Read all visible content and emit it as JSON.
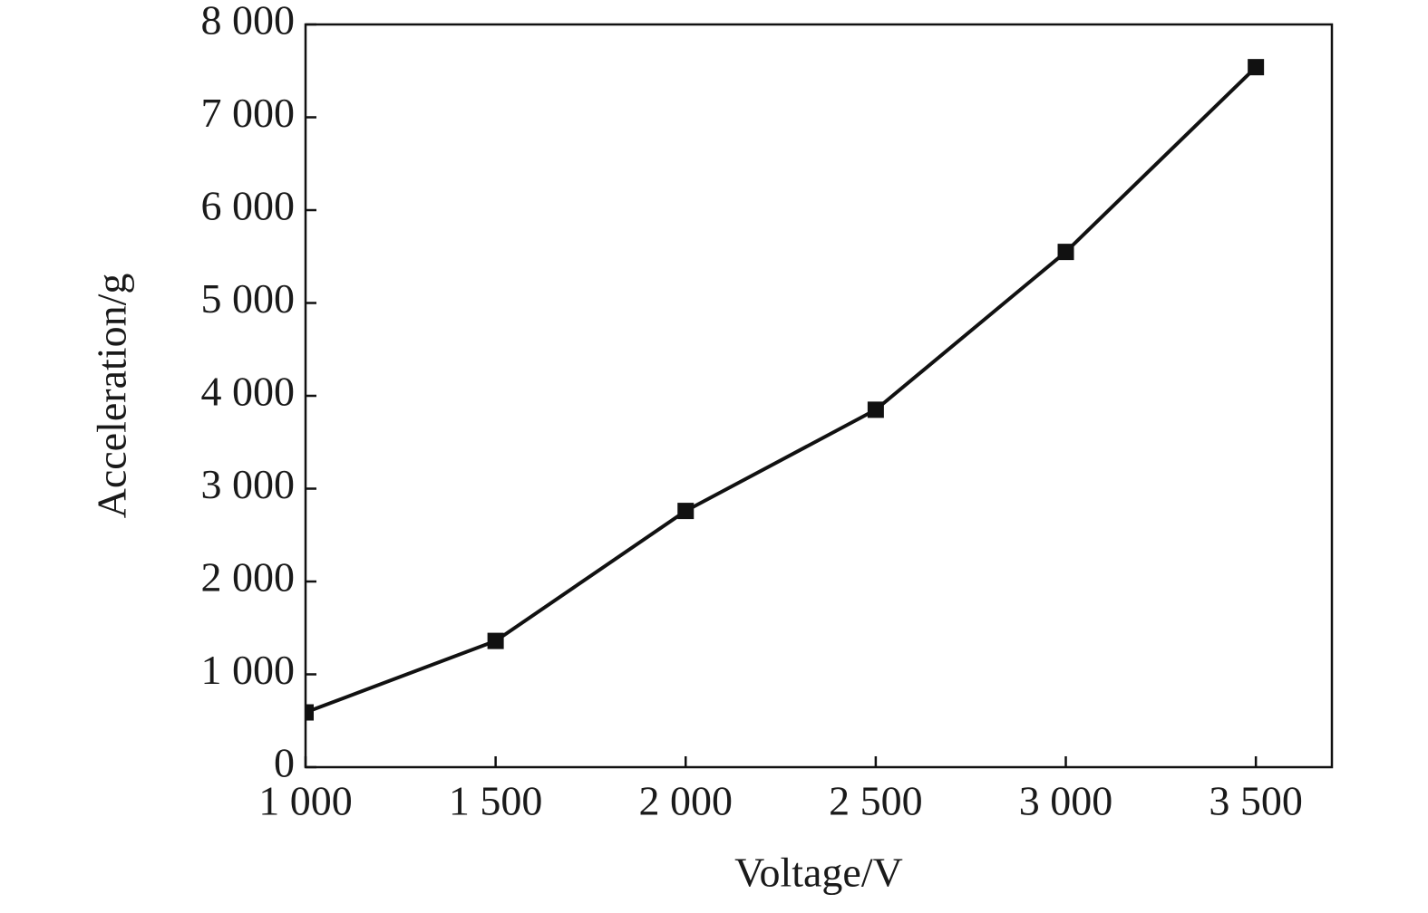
{
  "chart_data": {
    "type": "line",
    "x_label": "Voltage/V",
    "y_label": "Acceleration/g",
    "x": [
      1000,
      1500,
      2000,
      2500,
      3000,
      3500
    ],
    "series": [
      {
        "color": "#111111",
        "values": [
          590,
          1360,
          2760,
          3850,
          5550,
          7540
        ]
      }
    ],
    "xlim": [
      1000,
      3700
    ],
    "ylim": [
      0,
      8000
    ],
    "xticks": [
      {
        "value": 1000,
        "label": "1 000"
      },
      {
        "value": 1500,
        "label": "1 500"
      },
      {
        "value": 2000,
        "label": "2 000"
      },
      {
        "value": 2500,
        "label": "2 500"
      },
      {
        "value": 3000,
        "label": "3 000"
      },
      {
        "value": 3500,
        "label": "3 500"
      }
    ],
    "yticks": [
      0,
      {
        "value": 1000,
        "label": "1 000"
      },
      {
        "value": 2000,
        "label": "2 000"
      },
      {
        "value": 3000,
        "label": "3 000"
      },
      {
        "value": 4000,
        "label": "4 000"
      },
      {
        "value": 5000,
        "label": "5 000"
      },
      {
        "value": 6000,
        "label": "6 000"
      },
      {
        "value": 7000,
        "label": "7 000"
      },
      {
        "value": 8000,
        "label": "8 000"
      }
    ],
    "marker": "square"
  }
}
